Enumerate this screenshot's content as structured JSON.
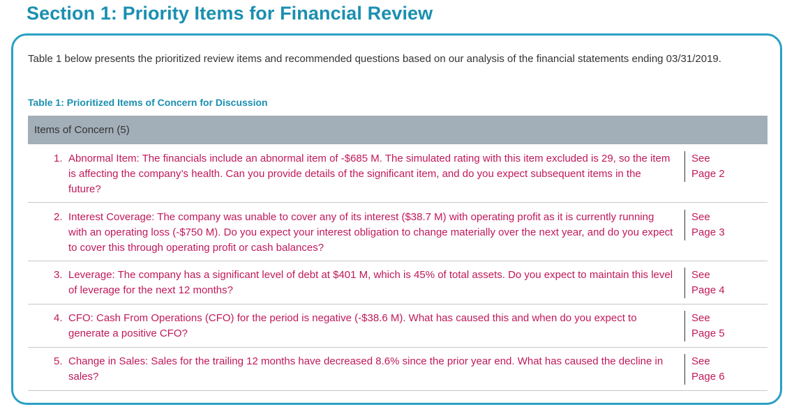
{
  "section_title": "Section 1: Priority Items for Financial Review",
  "intro_text": "Table 1 below presents the prioritized review items and recommended questions based on our analysis of the financial statements ending 03/31/2019.",
  "table": {
    "caption": "Table 1: Prioritized Items of Concern for Discussion",
    "header": "Items of Concern (5)",
    "rows": [
      {
        "number": "1.",
        "text": "Abnormal Item: The financials include an abnormal item of -$685 M. The simulated rating with this item excluded is 29, so the item is affecting the company’s health. Can you provide details of the significant item, and do you expect subsequent items in the future?",
        "ref_see": "See",
        "ref_page": "Page 2"
      },
      {
        "number": "2.",
        "text": "Interest Coverage: The company was unable to cover any of its interest ($38.7 M) with operating profit as it is currently running with an operating loss (-$750 M). Do you expect your interest obligation to change materially over the next year, and do you expect to cover this through operating profit or cash balances?",
        "ref_see": "See",
        "ref_page": "Page 3"
      },
      {
        "number": "3.",
        "text": "Leverage: The company has a significant level of debt at $401 M, which is 45% of total assets. Do you expect to maintain this level of leverage for the next 12 months?",
        "ref_see": "See",
        "ref_page": "Page 4"
      },
      {
        "number": "4.",
        "text": "CFO: Cash From Operations (CFO) for the period is negative (-$38.6 M). What has caused this and when do you expect to generate a positive CFO?",
        "ref_see": "See",
        "ref_page": "Page 5"
      },
      {
        "number": "5.",
        "text": "Change in Sales: Sales for the trailing 12 months have decreased 8.6% since the prior year end. What has caused the decline in sales?",
        "ref_see": "See",
        "ref_page": "Page 6"
      }
    ]
  }
}
